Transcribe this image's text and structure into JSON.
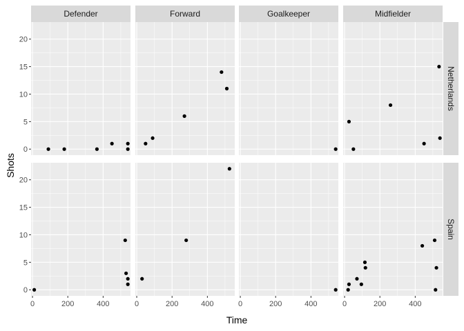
{
  "chart_data": {
    "type": "scatter",
    "xlabel": "Time",
    "ylabel": "Shots",
    "xlim": [
      -8,
      555
    ],
    "ylim": [
      -1.1,
      23.1
    ],
    "x_ticks": [
      0,
      200,
      400
    ],
    "x_tick_labels": [
      "0",
      "200",
      "400"
    ],
    "y_ticks": [
      0,
      5,
      10,
      15,
      20
    ],
    "y_tick_labels": [
      "0",
      "5",
      "10",
      "15",
      "20"
    ],
    "grid": true,
    "col_facets": [
      "Defender",
      "Forward",
      "Goalkeeper",
      "Midfielder"
    ],
    "row_facets": [
      "Netherlands",
      "Spain"
    ],
    "colors": {
      "panel": "#ebebeb",
      "grid_major": "#ffffff",
      "strip": "#d9d9d9",
      "point": "#000000"
    },
    "panels": [
      {
        "row": "Netherlands",
        "col": "Defender",
        "points": [
          [
            90,
            0
          ],
          [
            180,
            0
          ],
          [
            365,
            0
          ],
          [
            450,
            1
          ],
          [
            540,
            1
          ],
          [
            540,
            0
          ]
        ]
      },
      {
        "row": "Netherlands",
        "col": "Forward",
        "points": [
          [
            50,
            1
          ],
          [
            90,
            2
          ],
          [
            270,
            6
          ],
          [
            480,
            14
          ],
          [
            510,
            11
          ]
        ]
      },
      {
        "row": "Netherlands",
        "col": "Goalkeeper",
        "points": [
          [
            540,
            0
          ]
        ]
      },
      {
        "row": "Netherlands",
        "col": "Midfielder",
        "points": [
          [
            25,
            5
          ],
          [
            50,
            0
          ],
          [
            260,
            8
          ],
          [
            450,
            1
          ],
          [
            535,
            15
          ],
          [
            540,
            2
          ]
        ]
      },
      {
        "row": "Spain",
        "col": "Defender",
        "points": [
          [
            10,
            0
          ],
          [
            525,
            9
          ],
          [
            530,
            3
          ],
          [
            540,
            2
          ],
          [
            540,
            1
          ]
        ]
      },
      {
        "row": "Spain",
        "col": "Forward",
        "points": [
          [
            30,
            2
          ],
          [
            280,
            9
          ],
          [
            525,
            22
          ]
        ]
      },
      {
        "row": "Spain",
        "col": "Goalkeeper",
        "points": [
          [
            540,
            0
          ]
        ]
      },
      {
        "row": "Spain",
        "col": "Midfielder",
        "points": [
          [
            20,
            0
          ],
          [
            25,
            1
          ],
          [
            70,
            2
          ],
          [
            95,
            1
          ],
          [
            115,
            5
          ],
          [
            118,
            4
          ],
          [
            440,
            8
          ],
          [
            510,
            9
          ],
          [
            520,
            4
          ],
          [
            515,
            0
          ]
        ]
      }
    ]
  }
}
